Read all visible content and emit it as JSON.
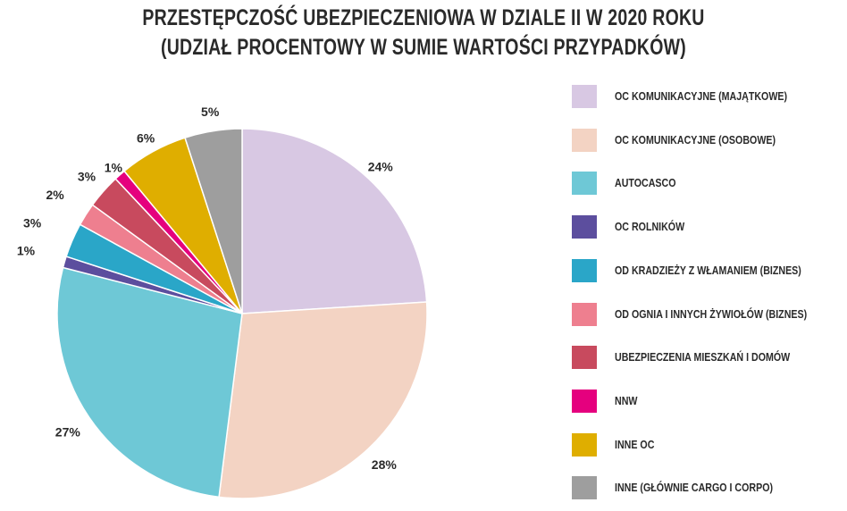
{
  "chart_data": {
    "type": "pie",
    "title": "PRZESTĘPCZOŚĆ UBEZPIECZENIOWA W DZIALE II W 2020 ROKU",
    "subtitle": "(UDZIAŁ PROCENTOWY W SUMIE WARTOŚCI PRZYPADKÓW)",
    "legend_position": "right",
    "slices": [
      {
        "name": "OC KOMUNIKACYJNE (MAJĄTKOWE)",
        "value": 24,
        "label": "24%",
        "color": "#d8c8e3"
      },
      {
        "name": "OC KOMUNIKACYJNE (OSOBOWE)",
        "value": 28,
        "label": "28%",
        "color": "#f3d3c3"
      },
      {
        "name": "AUTOCASCO",
        "value": 27,
        "label": "27%",
        "color": "#6ec8d6"
      },
      {
        "name": "OC ROLNIKÓW",
        "value": 1,
        "label": "1%",
        "color": "#5c4e9e"
      },
      {
        "name": "OD KRADZIEŻY Z WŁAMANIEM (BIZNES)",
        "value": 3,
        "label": "3%",
        "color": "#2aa6c8"
      },
      {
        "name": "OD OGNIA I INNYCH ŻYWIOŁÓW (BIZNES)",
        "value": 2,
        "label": "2%",
        "color": "#ee7f8f"
      },
      {
        "name": "UBEZPIECZENIA MIESZKAŃ I DOMÓW",
        "value": 3,
        "label": "3%",
        "color": "#c84a5e"
      },
      {
        "name": "NNW",
        "value": 1,
        "label": "1%",
        "color": "#e5007e"
      },
      {
        "name": "INNE OC",
        "value": 6,
        "label": "6%",
        "color": "#dfae00"
      },
      {
        "name": "INNE (GŁÓWNIE CARGO I CORPO)",
        "value": 5,
        "label": "5%",
        "color": "#9e9e9e"
      }
    ]
  }
}
